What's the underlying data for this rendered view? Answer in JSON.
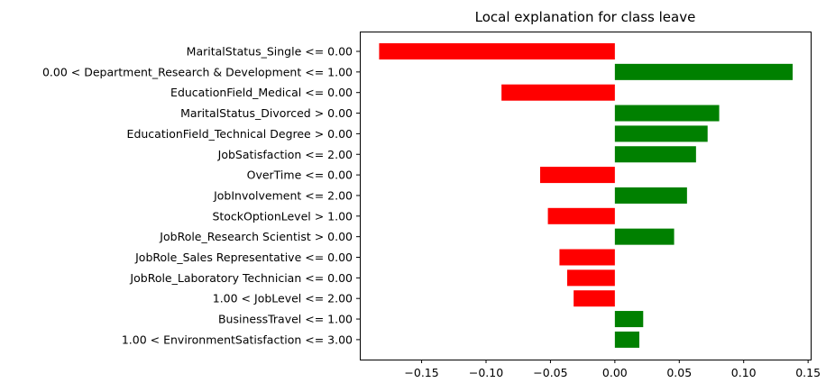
{
  "chart_data": {
    "type": "bar",
    "orientation": "horizontal",
    "title": "Local explanation for class leave",
    "categories": [
      "MaritalStatus_Single <= 0.00",
      "0.00 < Department_Research & Development <= 1.00",
      "EducationField_Medical <= 0.00",
      "MaritalStatus_Divorced > 0.00",
      "EducationField_Technical Degree > 0.00",
      "JobSatisfaction <= 2.00",
      "OverTime <= 0.00",
      "JobInvolvement <= 2.00",
      "StockOptionLevel > 1.00",
      "JobRole_Research Scientist > 0.00",
      "JobRole_Sales Representative <= 0.00",
      "JobRole_Laboratory Technician <= 0.00",
      "1.00 < JobLevel <= 2.00",
      "BusinessTravel <= 1.00",
      "1.00 < EnvironmentSatisfaction <= 3.00"
    ],
    "values": [
      -0.183,
      0.138,
      -0.088,
      0.081,
      0.072,
      0.063,
      -0.058,
      0.056,
      -0.052,
      0.046,
      -0.043,
      -0.037,
      -0.032,
      0.022,
      0.019
    ],
    "xlim": [
      -0.198,
      0.152
    ],
    "xticks": [
      -0.15,
      -0.1,
      -0.05,
      0.0,
      0.05,
      0.1,
      0.15
    ],
    "xtick_labels": [
      "−0.15",
      "−0.10",
      "−0.05",
      "0.00",
      "0.05",
      "0.10",
      "0.15"
    ],
    "colors": {
      "positive": "#008000",
      "negative": "#ff0000"
    },
    "grid": false,
    "xlabel": "",
    "ylabel": ""
  }
}
